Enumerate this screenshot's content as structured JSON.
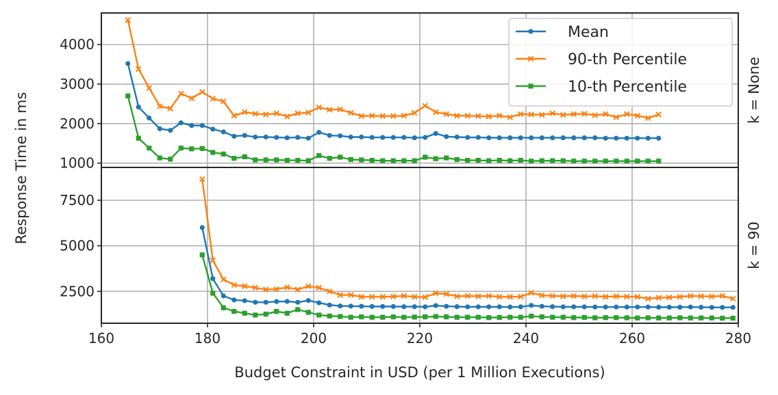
{
  "chart_data": {
    "type": "line",
    "xlabel": "Budget Constraint in USD (per 1 Million Executions)",
    "ylabel": "Response Time in ms",
    "xlim": [
      160,
      280
    ],
    "xticks": [
      160,
      180,
      200,
      220,
      240,
      260,
      280
    ],
    "grid": true,
    "legend": {
      "placement": "top-right of top panel",
      "entries": [
        "Mean",
        "90-th Percentile",
        "10-th Percentile"
      ]
    },
    "series_styles": [
      {
        "name": "Mean",
        "color": "#1f77b4",
        "marker": "circle"
      },
      {
        "name": "90-th Percentile",
        "color": "#ff7f0e",
        "marker": "x"
      },
      {
        "name": "10-th Percentile",
        "color": "#2ca02c",
        "marker": "square"
      }
    ],
    "panels": [
      {
        "facet_label": "k = None",
        "ylim": [
          890,
          4800
        ],
        "yticks": [
          1000,
          2000,
          3000,
          4000
        ],
        "x": [
          165,
          167,
          169,
          171,
          173,
          175,
          177,
          179,
          181,
          183,
          185,
          187,
          189,
          191,
          193,
          195,
          197,
          199,
          201,
          203,
          205,
          207,
          209,
          211,
          213,
          215,
          217,
          219,
          221,
          223,
          225,
          227,
          229,
          231,
          233,
          235,
          237,
          239,
          241,
          243,
          245,
          247,
          249,
          251,
          253,
          255,
          257,
          259,
          261,
          263,
          265
        ],
        "series": [
          {
            "name": "Mean",
            "values": [
              3520,
              2420,
              2140,
              1870,
              1830,
              2020,
              1950,
              1950,
              1860,
              1790,
              1680,
              1700,
              1660,
              1660,
              1650,
              1640,
              1650,
              1630,
              1780,
              1700,
              1690,
              1660,
              1660,
              1650,
              1650,
              1650,
              1650,
              1640,
              1650,
              1750,
              1670,
              1660,
              1650,
              1650,
              1640,
              1640,
              1640,
              1640,
              1640,
              1640,
              1640,
              1640,
              1640,
              1640,
              1640,
              1630,
              1630,
              1630,
              1630,
              1630,
              1630
            ]
          },
          {
            "name": "90-th Percentile",
            "values": [
              4620,
              3380,
              2900,
              2440,
              2380,
              2760,
              2640,
              2800,
              2630,
              2560,
              2200,
              2290,
              2250,
              2230,
              2260,
              2180,
              2260,
              2280,
              2410,
              2350,
              2360,
              2270,
              2190,
              2200,
              2190,
              2190,
              2200,
              2270,
              2450,
              2290,
              2240,
              2200,
              2200,
              2190,
              2180,
              2200,
              2160,
              2240,
              2230,
              2220,
              2260,
              2220,
              2240,
              2250,
              2210,
              2240,
              2160,
              2240,
              2200,
              2140,
              2230
            ]
          },
          {
            "name": "10-th Percentile",
            "values": [
              2700,
              1630,
              1380,
              1130,
              1100,
              1380,
              1360,
              1370,
              1270,
              1230,
              1120,
              1160,
              1080,
              1080,
              1080,
              1070,
              1070,
              1060,
              1190,
              1120,
              1150,
              1090,
              1080,
              1070,
              1060,
              1060,
              1060,
              1060,
              1150,
              1110,
              1130,
              1090,
              1070,
              1070,
              1060,
              1070,
              1060,
              1070,
              1050,
              1060,
              1060,
              1060,
              1050,
              1050,
              1050,
              1050,
              1050,
              1050,
              1050,
              1050,
              1050
            ]
          }
        ]
      },
      {
        "facet_label": "k = 90",
        "ylim": [
          750,
          9300
        ],
        "yticks": [
          2500,
          5000,
          7500
        ],
        "x": [
          179,
          181,
          183,
          185,
          187,
          189,
          191,
          193,
          195,
          197,
          199,
          201,
          203,
          205,
          207,
          209,
          211,
          213,
          215,
          217,
          219,
          221,
          223,
          225,
          227,
          229,
          231,
          233,
          235,
          237,
          239,
          241,
          243,
          245,
          247,
          249,
          251,
          253,
          255,
          257,
          259,
          261,
          263,
          265,
          267,
          269,
          271,
          273,
          275,
          277,
          279
        ],
        "series": [
          {
            "name": "Mean",
            "values": [
              6000,
              3200,
              2250,
              2030,
              1990,
              1900,
              1900,
              1940,
              1950,
              1900,
              2000,
              1870,
              1750,
              1700,
              1690,
              1680,
              1670,
              1670,
              1670,
              1660,
              1660,
              1650,
              1720,
              1680,
              1660,
              1650,
              1650,
              1650,
              1650,
              1640,
              1650,
              1730,
              1680,
              1660,
              1650,
              1650,
              1650,
              1640,
              1640,
              1640,
              1640,
              1640,
              1640,
              1630,
              1630,
              1630,
              1640,
              1630,
              1620,
              1620,
              1620
            ]
          },
          {
            "name": "90-th Percentile",
            "values": [
              8650,
              4200,
              3150,
              2850,
              2780,
              2700,
              2600,
              2620,
              2720,
              2600,
              2780,
              2700,
              2500,
              2300,
              2300,
              2200,
              2200,
              2200,
              2220,
              2250,
              2200,
              2180,
              2400,
              2350,
              2230,
              2250,
              2230,
              2250,
              2200,
              2200,
              2210,
              2420,
              2280,
              2250,
              2230,
              2250,
              2220,
              2240,
              2200,
              2230,
              2210,
              2200,
              2100,
              2150,
              2170,
              2200,
              2250,
              2230,
              2220,
              2250,
              2100
            ]
          },
          {
            "name": "10-th Percentile",
            "values": [
              4500,
              2400,
              1600,
              1400,
              1300,
              1200,
              1250,
              1400,
              1300,
              1500,
              1350,
              1200,
              1150,
              1120,
              1080,
              1100,
              1080,
              1080,
              1100,
              1080,
              1090,
              1100,
              1120,
              1100,
              1080,
              1080,
              1080,
              1060,
              1070,
              1080,
              1080,
              1140,
              1100,
              1080,
              1080,
              1060,
              1070,
              1050,
              1060,
              1060,
              1050,
              1040,
              1050,
              1040,
              1040,
              1050,
              1040,
              1040,
              1040,
              1030,
              1030
            ]
          }
        ]
      }
    ]
  }
}
